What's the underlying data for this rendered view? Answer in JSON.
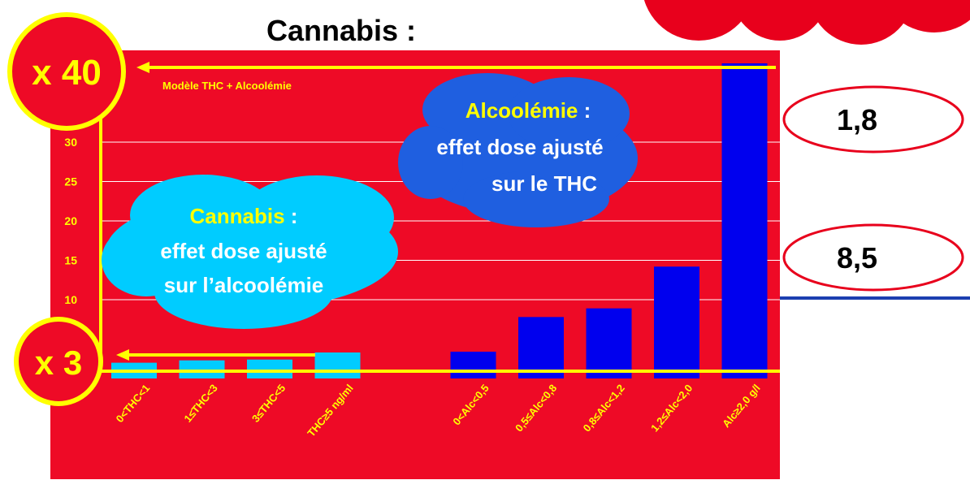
{
  "chart_data": {
    "type": "bar",
    "title": "Cannabis :",
    "categories": [
      "0<THC<1",
      "1≤THC<3",
      "3≤THC<5",
      "THC≥5 ng/ml",
      null,
      "0<Alc<0,5",
      "0,5≤Alc<0,8",
      "0,8≤Alc<1,2",
      "1,2≤Alc<2,0",
      "Alc≥2,0 g/l"
    ],
    "values": [
      2,
      2.3,
      2.4,
      3.3,
      null,
      3.4,
      7.8,
      8.9,
      14.2,
      40
    ],
    "colors": [
      "#00ccff",
      "#00ccff",
      "#00ccff",
      "#00ccff",
      null,
      "#0000ee",
      "#0000ee",
      "#0000ee",
      "#0000ee",
      "#0000ee"
    ],
    "ylim": [
      0,
      40
    ],
    "yticks": [
      10,
      15,
      20,
      25,
      30
    ],
    "grid": true,
    "annotations": {
      "factor_top": "x 40",
      "factor_bottom": "x 3",
      "model": "Modèle THC + Alcoolémie",
      "cannabis_cloud": [
        "Cannabis",
        " :",
        "effet dose ajusté",
        "sur l’alcoolémie"
      ],
      "alcohol_cloud": [
        "Alcoolémie",
        " :",
        "effet dose ajusté",
        "sur le THC"
      ],
      "right_values": [
        "1,8",
        "8,5"
      ]
    }
  }
}
